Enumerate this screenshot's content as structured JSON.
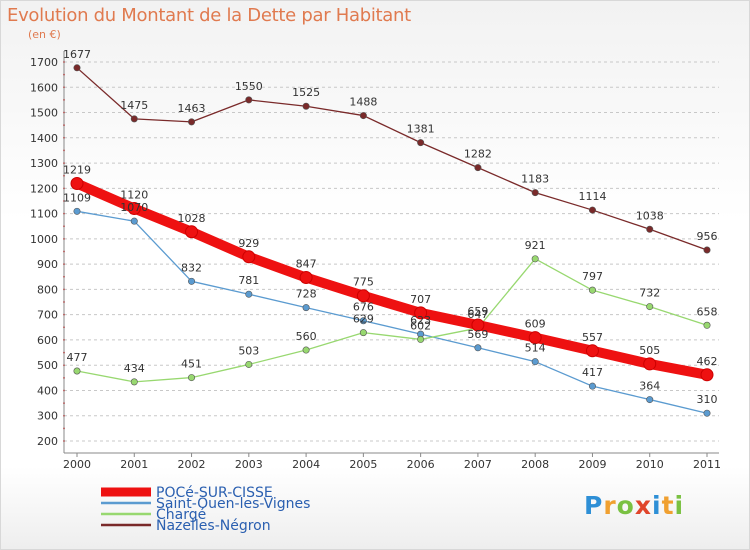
{
  "title": "Evolution du Montant de la Dette par Habitant",
  "unit_label": "(en €)",
  "brand": {
    "letters": [
      "P",
      "r",
      "o",
      "x",
      "i",
      "t",
      "i"
    ],
    "colors": [
      "#2e8fd6",
      "#f0a030",
      "#7ac142",
      "#e0452b",
      "#2e8fd6",
      "#f0a030",
      "#7ac142"
    ]
  },
  "chart_data": {
    "type": "line",
    "title": "Evolution du Montant de la Dette par Habitant",
    "ylabel": "(en €)",
    "xlabel": "",
    "ylim": [
      200,
      1700
    ],
    "yticks": [
      200,
      300,
      400,
      500,
      600,
      700,
      800,
      900,
      1000,
      1100,
      1200,
      1300,
      1400,
      1500,
      1600,
      1700
    ],
    "grid": "horizontal dashed",
    "legend_position": "bottom-left",
    "categories": [
      "2000",
      "2001",
      "2002",
      "2003",
      "2004",
      "2005",
      "2006",
      "2007",
      "2008",
      "2009",
      "2010",
      "2011"
    ],
    "series": [
      {
        "name": "POCé-SUR-CISSE",
        "color": "#ee1111",
        "emphasis": true,
        "values": [
          1219,
          1120,
          1028,
          929,
          847,
          775,
          707,
          659,
          609,
          557,
          505,
          462
        ]
      },
      {
        "name": "Saint-Ouen-les-Vignes",
        "color": "#5b9bd0",
        "emphasis": false,
        "values": [
          1109,
          1070,
          832,
          781,
          728,
          676,
          623,
          569,
          514,
          417,
          364,
          310
        ]
      },
      {
        "name": "Chargé",
        "color": "#98d870",
        "emphasis": false,
        "values": [
          477,
          434,
          451,
          503,
          560,
          629,
          602,
          647,
          921,
          797,
          732,
          658
        ]
      },
      {
        "name": "Nazelles-Négron",
        "color": "#7a2a2a",
        "emphasis": false,
        "values": [
          1677,
          1475,
          1463,
          1550,
          1525,
          1488,
          1381,
          1282,
          1183,
          1114,
          1038,
          956
        ]
      }
    ]
  }
}
